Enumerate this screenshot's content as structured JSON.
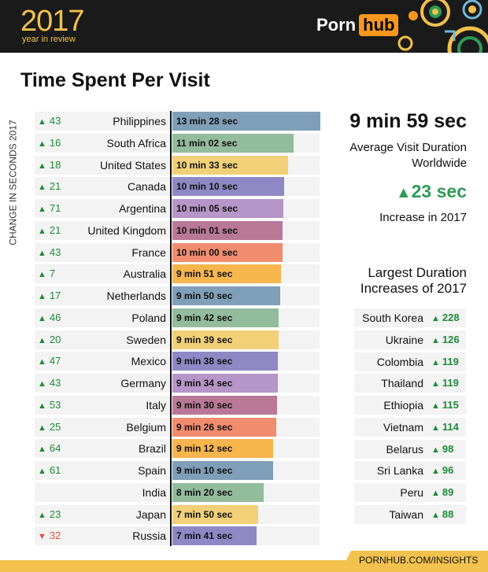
{
  "header": {
    "year": "2017",
    "subtitle": "year in review",
    "logo_left": "Porn",
    "logo_right": "hub"
  },
  "page_title": "Time Spent Per Visit",
  "vertical_label": "CHANGE IN SECONDS 2017",
  "summary": {
    "big_value": "9 min 59 sec",
    "big_label": "Average Visit Duration Worldwide",
    "increase_value": "23 sec",
    "increase_label": "Increase in 2017"
  },
  "largest_increases": {
    "title": "Largest Duration Increases of 2017",
    "items": [
      {
        "country": "South Korea",
        "change": "228"
      },
      {
        "country": "Ukraine",
        "change": "126"
      },
      {
        "country": "Colombia",
        "change": "119"
      },
      {
        "country": "Thailand",
        "change": "119"
      },
      {
        "country": "Ethiopia",
        "change": "115"
      },
      {
        "country": "Vietnam",
        "change": "114"
      },
      {
        "country": "Belarus",
        "change": "98"
      },
      {
        "country": "Sri Lanka",
        "change": "96"
      },
      {
        "country": "Peru",
        "change": "89"
      },
      {
        "country": "Taiwan",
        "change": "88"
      }
    ]
  },
  "footer": "PORNHUB.COM/INSIGHTS",
  "colors": {
    "bars": [
      "#7f9fb9",
      "#93bc9c",
      "#f1d078",
      "#8f88c4",
      "#b695c8",
      "#b87896",
      "#f28c6e",
      "#f7b54d"
    ],
    "up": "#1f8a3a",
    "down": "#e0533f",
    "accent": "#f2c14e"
  },
  "chart_data": {
    "type": "bar",
    "title": "Time Spent Per Visit",
    "ylabel": "CHANGE IN SECONDS 2017",
    "xlim_seconds": [
      0,
      808
    ],
    "categories": [
      "Philippines",
      "South Africa",
      "United States",
      "Canada",
      "Argentina",
      "United Kingdom",
      "France",
      "Australia",
      "Netherlands",
      "Poland",
      "Sweden",
      "Mexico",
      "Germany",
      "Italy",
      "Belgium",
      "Brazil",
      "Spain",
      "India",
      "Japan",
      "Russia"
    ],
    "values_seconds": [
      808,
      662,
      633,
      610,
      605,
      601,
      600,
      591,
      590,
      582,
      579,
      578,
      574,
      570,
      566,
      552,
      550,
      500,
      470,
      461
    ],
    "value_labels": [
      "13 min 28 sec",
      "11 min 02 sec",
      "10 min 33 sec",
      "10 min 10 sec",
      "10 min 05 sec",
      "10 min 01 sec",
      "10 min 00 sec",
      "9 min 51 sec",
      "9 min 50 sec",
      "9 min 42 sec",
      "9 min 39 sec",
      "9 min 38 sec",
      "9 min 34 sec",
      "9 min 30 sec",
      "9 min 26 sec",
      "9 min 12 sec",
      "9 min 10 sec",
      "8 min 20 sec",
      "7 min 50 sec",
      "7 min 41 sec"
    ],
    "changes": [
      {
        "dir": "up",
        "value": "43"
      },
      {
        "dir": "up",
        "value": "16"
      },
      {
        "dir": "up",
        "value": "18"
      },
      {
        "dir": "up",
        "value": "21"
      },
      {
        "dir": "up",
        "value": "71"
      },
      {
        "dir": "up",
        "value": "21"
      },
      {
        "dir": "up",
        "value": "43"
      },
      {
        "dir": "up",
        "value": "7"
      },
      {
        "dir": "up",
        "value": "17"
      },
      {
        "dir": "up",
        "value": "46"
      },
      {
        "dir": "up",
        "value": "20"
      },
      {
        "dir": "up",
        "value": "47"
      },
      {
        "dir": "up",
        "value": "43"
      },
      {
        "dir": "up",
        "value": "53"
      },
      {
        "dir": "up",
        "value": "25"
      },
      {
        "dir": "up",
        "value": "64"
      },
      {
        "dir": "up",
        "value": "61"
      },
      {
        "dir": "none",
        "value": ""
      },
      {
        "dir": "up",
        "value": "23"
      },
      {
        "dir": "down",
        "value": "32"
      }
    ]
  }
}
